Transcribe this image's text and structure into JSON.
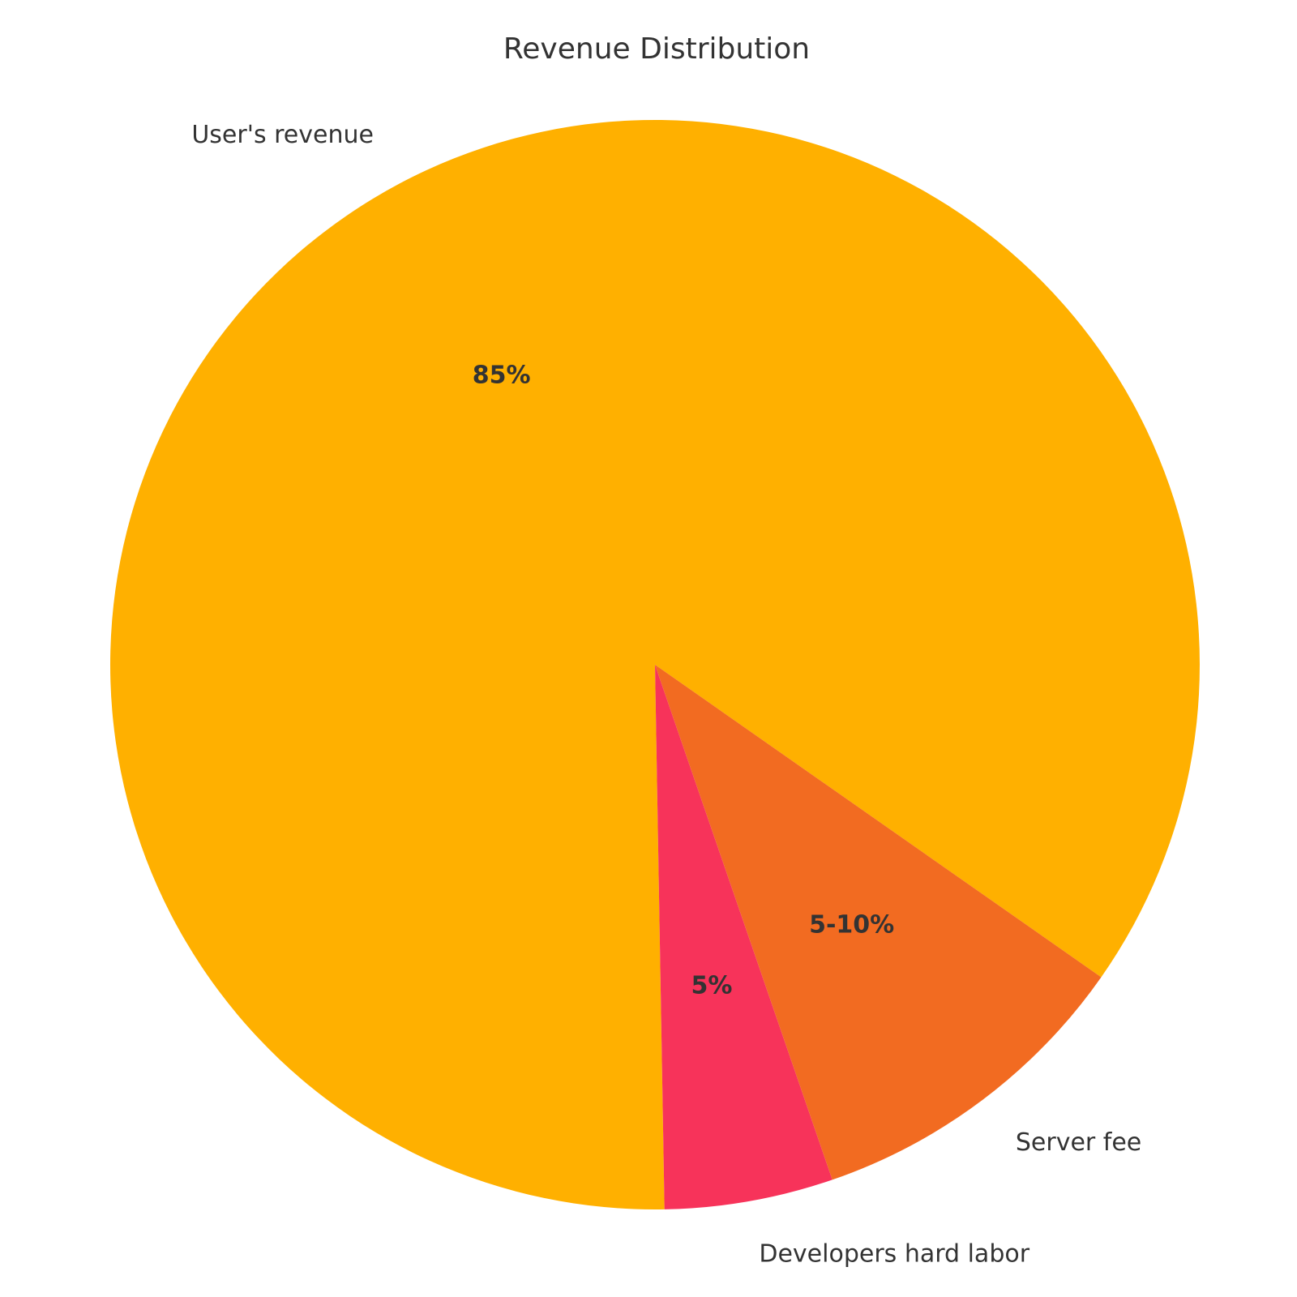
{
  "chart_data": {
    "type": "pie",
    "title": "Revenue Distribution",
    "slices": [
      {
        "name": "User's revenue",
        "value": 85,
        "label": "85%",
        "color": "#FFB000"
      },
      {
        "name": "Developers hard labor",
        "value": 5,
        "label": "5%",
        "color": "#F7335A"
      },
      {
        "name": "Server fee",
        "value": 10,
        "label": "5-10%",
        "color": "#F26B21"
      }
    ],
    "legend": "none"
  }
}
